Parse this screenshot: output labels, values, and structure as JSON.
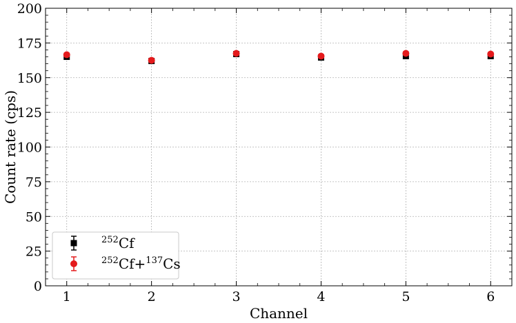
{
  "chart_data": {
    "type": "scatter",
    "xlabel": "Channel",
    "ylabel": "Count rate (cps)",
    "xlim": [
      0.75,
      6.25
    ],
    "ylim": [
      0,
      200
    ],
    "x_ticks": [
      1,
      2,
      3,
      4,
      5,
      6
    ],
    "y_ticks": [
      0,
      25,
      50,
      75,
      100,
      125,
      150,
      175,
      200
    ],
    "grid": true,
    "legend_position": "bottom-left",
    "series": [
      {
        "name_parts": [
          {
            "sup": "252"
          },
          {
            "text": "Cf"
          }
        ],
        "marker": "square",
        "color": "#000000",
        "x": [
          1,
          2,
          3,
          4,
          5,
          6
        ],
        "y": [
          165,
          162,
          167,
          164.5,
          165.5,
          165.5
        ],
        "yerr": [
          1.3,
          1.3,
          1.3,
          1.3,
          1.3,
          1.3
        ]
      },
      {
        "name_parts": [
          {
            "sup": "252"
          },
          {
            "text": "Cf+"
          },
          {
            "sup": "137"
          },
          {
            "text": "Cs"
          }
        ],
        "marker": "circle",
        "color": "#e41a1c",
        "x": [
          1,
          2,
          3,
          4,
          5,
          6
        ],
        "y": [
          166.5,
          162.5,
          167.5,
          165.5,
          167.5,
          167
        ],
        "yerr": [
          1.3,
          1.3,
          1.3,
          1.3,
          1.3,
          1.3
        ]
      }
    ]
  }
}
